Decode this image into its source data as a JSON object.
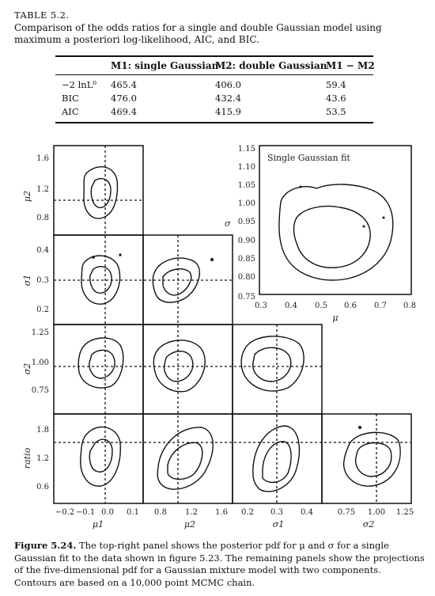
{
  "table": {
    "label": "TABLE 5.2.",
    "caption": "Comparison of the odds ratios for a single and double Gaussian model using maximum a posteriori log-likelihood, AIC, and BIC.",
    "columns": [
      "",
      "M1: single Gaussian",
      "M2: double Gaussian",
      "M1 − M2"
    ],
    "rows": [
      {
        "label": "−2 lnL⁰",
        "m1": "465.4",
        "m2": "406.0",
        "diff": "59.4"
      },
      {
        "label": "BIC",
        "m1": "476.0",
        "m2": "432.4",
        "diff": "43.6"
      },
      {
        "label": "AIC",
        "m1": "469.4",
        "m2": "415.9",
        "diff": "53.5"
      }
    ]
  },
  "figure": {
    "number": "Figure 5.24.",
    "caption": "The top-right panel shows the posterior pdf for μ and σ for a single Gaussian fit to the data shown in figure 5.23. The remaining panels show the projections of the five-dimensional pdf for a Gaussian mixture model with two components. Contours are based on a 10,000 point MCMC chain.",
    "inset_title": "Single Gaussian fit",
    "inset_xlabel": "μ",
    "inset_ylabel": "σ",
    "inset_xticks": [
      "0.3",
      "0.4",
      "0.5",
      "0.6",
      "0.7",
      "0.8"
    ],
    "inset_yticks": [
      "1.15",
      "1.10",
      "1.05",
      "1.00",
      "0.95",
      "0.90",
      "0.85",
      "0.80",
      "0.75"
    ],
    "row_labels": [
      "μ2",
      "σ1",
      "σ2",
      "ratio"
    ],
    "col_labels": [
      "μ1",
      "μ2",
      "σ1",
      "σ2"
    ],
    "row_ticks": [
      [
        "1.6",
        "1.2",
        "0.8"
      ],
      [
        "0.4",
        "0.3",
        "0.2"
      ],
      [
        "1.25",
        "1.00",
        "0.75"
      ],
      [
        "1.8",
        "1.2",
        "0.6"
      ]
    ],
    "col_ticks": [
      [
        "−0.2",
        "−0.1",
        "0.0",
        "0.1"
      ],
      [
        "0.8",
        "1.2",
        "1.6"
      ],
      [
        "0.2",
        "0.3",
        "0.4"
      ],
      [
        "0.75",
        "1.00",
        "1.25"
      ]
    ]
  }
}
